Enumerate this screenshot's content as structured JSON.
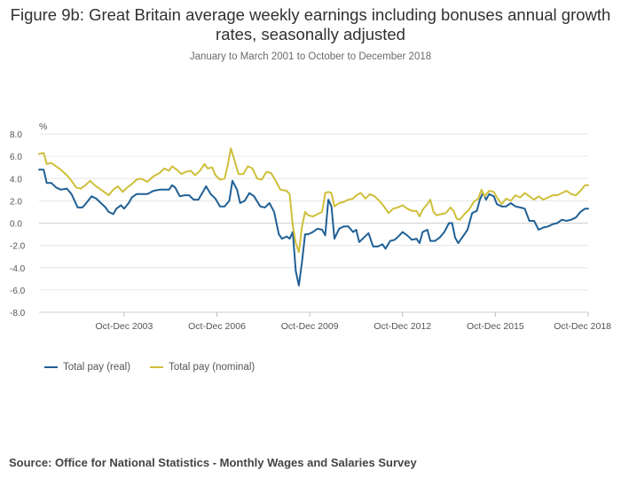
{
  "chart_data": {
    "type": "line",
    "title": "Figure 9b: Great Britain average weekly earnings including bonuses annual growth rates, seasonally adjusted",
    "subtitle": "January to March 2001 to October to December 2018",
    "ylabel": "%",
    "ylim": [
      -8,
      8
    ],
    "yticks": [
      8,
      6,
      4,
      2,
      0,
      -2,
      -4,
      -6,
      -8
    ],
    "ytick_labels": [
      "8.0",
      "6.0",
      "4.0",
      "2.0",
      "0.0",
      "-2.0",
      "-4.0",
      "-6.0",
      "-8.0"
    ],
    "xlim": [
      2001.0,
      2018.75
    ],
    "xtick_labels": [
      {
        "x": 2003.75,
        "label": "Oct-Dec 2003"
      },
      {
        "x": 2006.75,
        "label": "Oct-Dec 2006"
      },
      {
        "x": 2009.75,
        "label": "Oct-Dec 2009"
      },
      {
        "x": 2012.75,
        "label": "Oct-Dec 2012"
      },
      {
        "x": 2015.75,
        "label": "Oct-Dec 2015"
      },
      {
        "x": 2018.75,
        "label": "Oct-Dec 2018"
      }
    ],
    "grid": true,
    "legend_position": "bottom-left",
    "series": [
      {
        "name": "Total pay (real)",
        "color": "#206095",
        "points": [
          [
            2001.0,
            4.8
          ],
          [
            2001.15,
            4.8
          ],
          [
            2001.25,
            3.6
          ],
          [
            2001.4,
            3.6
          ],
          [
            2001.55,
            3.2
          ],
          [
            2001.7,
            3.0
          ],
          [
            2001.9,
            3.1
          ],
          [
            2002.05,
            2.6
          ],
          [
            2002.25,
            1.4
          ],
          [
            2002.4,
            1.4
          ],
          [
            2002.5,
            1.7
          ],
          [
            2002.7,
            2.4
          ],
          [
            2002.85,
            2.2
          ],
          [
            2003.0,
            1.8
          ],
          [
            2003.15,
            1.4
          ],
          [
            2003.25,
            1.0
          ],
          [
            2003.4,
            0.8
          ],
          [
            2003.5,
            1.3
          ],
          [
            2003.65,
            1.6
          ],
          [
            2003.75,
            1.3
          ],
          [
            2003.9,
            1.8
          ],
          [
            2004.0,
            2.3
          ],
          [
            2004.15,
            2.6
          ],
          [
            2004.3,
            2.6
          ],
          [
            2004.5,
            2.6
          ],
          [
            2004.7,
            2.9
          ],
          [
            2004.9,
            3.0
          ],
          [
            2005.05,
            3.0
          ],
          [
            2005.2,
            3.0
          ],
          [
            2005.3,
            3.4
          ],
          [
            2005.4,
            3.2
          ],
          [
            2005.55,
            2.4
          ],
          [
            2005.7,
            2.5
          ],
          [
            2005.85,
            2.5
          ],
          [
            2006.0,
            2.1
          ],
          [
            2006.15,
            2.1
          ],
          [
            2006.3,
            2.8
          ],
          [
            2006.4,
            3.3
          ],
          [
            2006.55,
            2.6
          ],
          [
            2006.7,
            2.2
          ],
          [
            2006.85,
            1.5
          ],
          [
            2007.0,
            1.5
          ],
          [
            2007.15,
            2.0
          ],
          [
            2007.25,
            3.8
          ],
          [
            2007.4,
            3.0
          ],
          [
            2007.5,
            1.8
          ],
          [
            2007.65,
            2.0
          ],
          [
            2007.8,
            2.7
          ],
          [
            2007.95,
            2.4
          ],
          [
            2008.15,
            1.5
          ],
          [
            2008.3,
            1.4
          ],
          [
            2008.45,
            1.8
          ],
          [
            2008.6,
            1.0
          ],
          [
            2008.75,
            -1.0
          ],
          [
            2008.85,
            -1.4
          ],
          [
            2009.0,
            -1.2
          ],
          [
            2009.1,
            -1.4
          ],
          [
            2009.2,
            -0.8
          ],
          [
            2009.3,
            -4.3
          ],
          [
            2009.4,
            -5.6
          ],
          [
            2009.5,
            -3.5
          ],
          [
            2009.6,
            -1.0
          ],
          [
            2009.7,
            -1.0
          ],
          [
            2009.85,
            -0.8
          ],
          [
            2010.0,
            -0.5
          ],
          [
            2010.15,
            -0.6
          ],
          [
            2010.25,
            -1.1
          ],
          [
            2010.35,
            2.1
          ],
          [
            2010.45,
            1.5
          ],
          [
            2010.55,
            -1.4
          ],
          [
            2010.7,
            -0.5
          ],
          [
            2010.85,
            -0.3
          ],
          [
            2011.0,
            -0.3
          ],
          [
            2011.15,
            -0.8
          ],
          [
            2011.25,
            -0.6
          ],
          [
            2011.35,
            -1.7
          ],
          [
            2011.5,
            -1.3
          ],
          [
            2011.65,
            -0.9
          ],
          [
            2011.8,
            -2.1
          ],
          [
            2011.95,
            -2.1
          ],
          [
            2012.1,
            -1.9
          ],
          [
            2012.2,
            -2.3
          ],
          [
            2012.35,
            -1.6
          ],
          [
            2012.5,
            -1.5
          ],
          [
            2012.65,
            -1.1
          ],
          [
            2012.75,
            -0.8
          ],
          [
            2012.9,
            -1.1
          ],
          [
            2013.05,
            -1.5
          ],
          [
            2013.2,
            -1.4
          ],
          [
            2013.3,
            -1.8
          ],
          [
            2013.4,
            -0.8
          ],
          [
            2013.55,
            -0.6
          ],
          [
            2013.65,
            -1.6
          ],
          [
            2013.8,
            -1.6
          ],
          [
            2013.95,
            -1.3
          ],
          [
            2014.1,
            -0.8
          ],
          [
            2014.25,
            0.0
          ],
          [
            2014.35,
            0.0
          ],
          [
            2014.45,
            -1.3
          ],
          [
            2014.55,
            -1.8
          ],
          [
            2014.7,
            -1.2
          ],
          [
            2014.85,
            -0.6
          ],
          [
            2015.0,
            0.9
          ],
          [
            2015.15,
            1.1
          ],
          [
            2015.25,
            2.1
          ],
          [
            2015.35,
            2.7
          ],
          [
            2015.45,
            2.1
          ],
          [
            2015.55,
            2.6
          ],
          [
            2015.7,
            2.4
          ],
          [
            2015.8,
            1.7
          ],
          [
            2015.95,
            1.5
          ],
          [
            2016.1,
            1.5
          ],
          [
            2016.25,
            1.8
          ],
          [
            2016.4,
            1.5
          ],
          [
            2016.55,
            1.4
          ],
          [
            2016.7,
            1.3
          ],
          [
            2016.85,
            0.2
          ],
          [
            2017.0,
            0.2
          ],
          [
            2017.15,
            -0.6
          ],
          [
            2017.3,
            -0.4
          ],
          [
            2017.45,
            -0.3
          ],
          [
            2017.6,
            -0.1
          ],
          [
            2017.75,
            0.0
          ],
          [
            2017.9,
            0.3
          ],
          [
            2018.05,
            0.2
          ],
          [
            2018.2,
            0.3
          ],
          [
            2018.35,
            0.5
          ],
          [
            2018.5,
            1.0
          ],
          [
            2018.65,
            1.3
          ],
          [
            2018.75,
            1.3
          ]
        ]
      },
      {
        "name": "Total pay (nominal)",
        "color": "#CFBF3A",
        "points": [
          [
            2001.0,
            6.2
          ],
          [
            2001.15,
            6.3
          ],
          [
            2001.25,
            5.3
          ],
          [
            2001.4,
            5.4
          ],
          [
            2001.55,
            5.1
          ],
          [
            2001.7,
            4.8
          ],
          [
            2001.9,
            4.3
          ],
          [
            2002.05,
            3.8
          ],
          [
            2002.2,
            3.2
          ],
          [
            2002.35,
            3.1
          ],
          [
            2002.5,
            3.4
          ],
          [
            2002.65,
            3.8
          ],
          [
            2002.8,
            3.4
          ],
          [
            2003.0,
            3.0
          ],
          [
            2003.15,
            2.7
          ],
          [
            2003.25,
            2.5
          ],
          [
            2003.4,
            3.0
          ],
          [
            2003.55,
            3.3
          ],
          [
            2003.7,
            2.8
          ],
          [
            2003.85,
            3.2
          ],
          [
            2004.0,
            3.5
          ],
          [
            2004.15,
            3.9
          ],
          [
            2004.3,
            4.0
          ],
          [
            2004.5,
            3.7
          ],
          [
            2004.7,
            4.2
          ],
          [
            2004.9,
            4.5
          ],
          [
            2005.05,
            4.9
          ],
          [
            2005.2,
            4.7
          ],
          [
            2005.3,
            5.1
          ],
          [
            2005.45,
            4.8
          ],
          [
            2005.6,
            4.4
          ],
          [
            2005.75,
            4.6
          ],
          [
            2005.9,
            4.7
          ],
          [
            2006.05,
            4.3
          ],
          [
            2006.2,
            4.7
          ],
          [
            2006.35,
            5.3
          ],
          [
            2006.45,
            4.9
          ],
          [
            2006.6,
            5.0
          ],
          [
            2006.7,
            4.3
          ],
          [
            2006.85,
            3.9
          ],
          [
            2007.0,
            4.0
          ],
          [
            2007.1,
            5.2
          ],
          [
            2007.2,
            6.7
          ],
          [
            2007.3,
            5.8
          ],
          [
            2007.45,
            4.4
          ],
          [
            2007.6,
            4.4
          ],
          [
            2007.75,
            5.1
          ],
          [
            2007.9,
            4.9
          ],
          [
            2008.05,
            4.0
          ],
          [
            2008.2,
            3.9
          ],
          [
            2008.35,
            4.6
          ],
          [
            2008.5,
            4.5
          ],
          [
            2008.65,
            3.8
          ],
          [
            2008.8,
            3.0
          ],
          [
            2009.0,
            2.9
          ],
          [
            2009.1,
            2.6
          ],
          [
            2009.2,
            -0.2
          ],
          [
            2009.3,
            -1.8
          ],
          [
            2009.4,
            -2.6
          ],
          [
            2009.5,
            -0.3
          ],
          [
            2009.6,
            1.0
          ],
          [
            2009.7,
            0.7
          ],
          [
            2009.85,
            0.6
          ],
          [
            2010.0,
            0.8
          ],
          [
            2010.15,
            1.0
          ],
          [
            2010.25,
            2.7
          ],
          [
            2010.35,
            2.8
          ],
          [
            2010.45,
            2.7
          ],
          [
            2010.55,
            1.5
          ],
          [
            2010.7,
            1.8
          ],
          [
            2010.85,
            1.9
          ],
          [
            2011.0,
            2.1
          ],
          [
            2011.15,
            2.2
          ],
          [
            2011.25,
            2.5
          ],
          [
            2011.4,
            2.7
          ],
          [
            2011.55,
            2.2
          ],
          [
            2011.7,
            2.6
          ],
          [
            2011.85,
            2.4
          ],
          [
            2012.0,
            2.0
          ],
          [
            2012.15,
            1.5
          ],
          [
            2012.3,
            0.9
          ],
          [
            2012.45,
            1.3
          ],
          [
            2012.6,
            1.4
          ],
          [
            2012.75,
            1.6
          ],
          [
            2012.9,
            1.3
          ],
          [
            2013.05,
            1.1
          ],
          [
            2013.2,
            1.1
          ],
          [
            2013.3,
            0.6
          ],
          [
            2013.4,
            1.2
          ],
          [
            2013.55,
            1.7
          ],
          [
            2013.65,
            2.1
          ],
          [
            2013.75,
            1.0
          ],
          [
            2013.85,
            0.7
          ],
          [
            2014.0,
            0.8
          ],
          [
            2014.15,
            0.9
          ],
          [
            2014.3,
            1.4
          ],
          [
            2014.4,
            1.1
          ],
          [
            2014.5,
            0.4
          ],
          [
            2014.6,
            0.3
          ],
          [
            2014.75,
            0.8
          ],
          [
            2014.9,
            1.2
          ],
          [
            2015.05,
            1.9
          ],
          [
            2015.2,
            2.2
          ],
          [
            2015.3,
            3.0
          ],
          [
            2015.4,
            2.4
          ],
          [
            2015.55,
            2.9
          ],
          [
            2015.7,
            2.8
          ],
          [
            2015.8,
            2.3
          ],
          [
            2015.95,
            1.7
          ],
          [
            2016.1,
            2.2
          ],
          [
            2016.25,
            2.0
          ],
          [
            2016.4,
            2.5
          ],
          [
            2016.55,
            2.3
          ],
          [
            2016.7,
            2.7
          ],
          [
            2016.85,
            2.4
          ],
          [
            2017.0,
            2.1
          ],
          [
            2017.15,
            2.4
          ],
          [
            2017.3,
            2.1
          ],
          [
            2017.45,
            2.3
          ],
          [
            2017.6,
            2.5
          ],
          [
            2017.75,
            2.5
          ],
          [
            2017.9,
            2.7
          ],
          [
            2018.05,
            2.9
          ],
          [
            2018.2,
            2.6
          ],
          [
            2018.35,
            2.5
          ],
          [
            2018.5,
            2.9
          ],
          [
            2018.65,
            3.4
          ],
          [
            2018.75,
            3.4
          ]
        ]
      }
    ]
  },
  "source_text": "Source: Office for National Statistics - Monthly Wages and Salaries Survey"
}
